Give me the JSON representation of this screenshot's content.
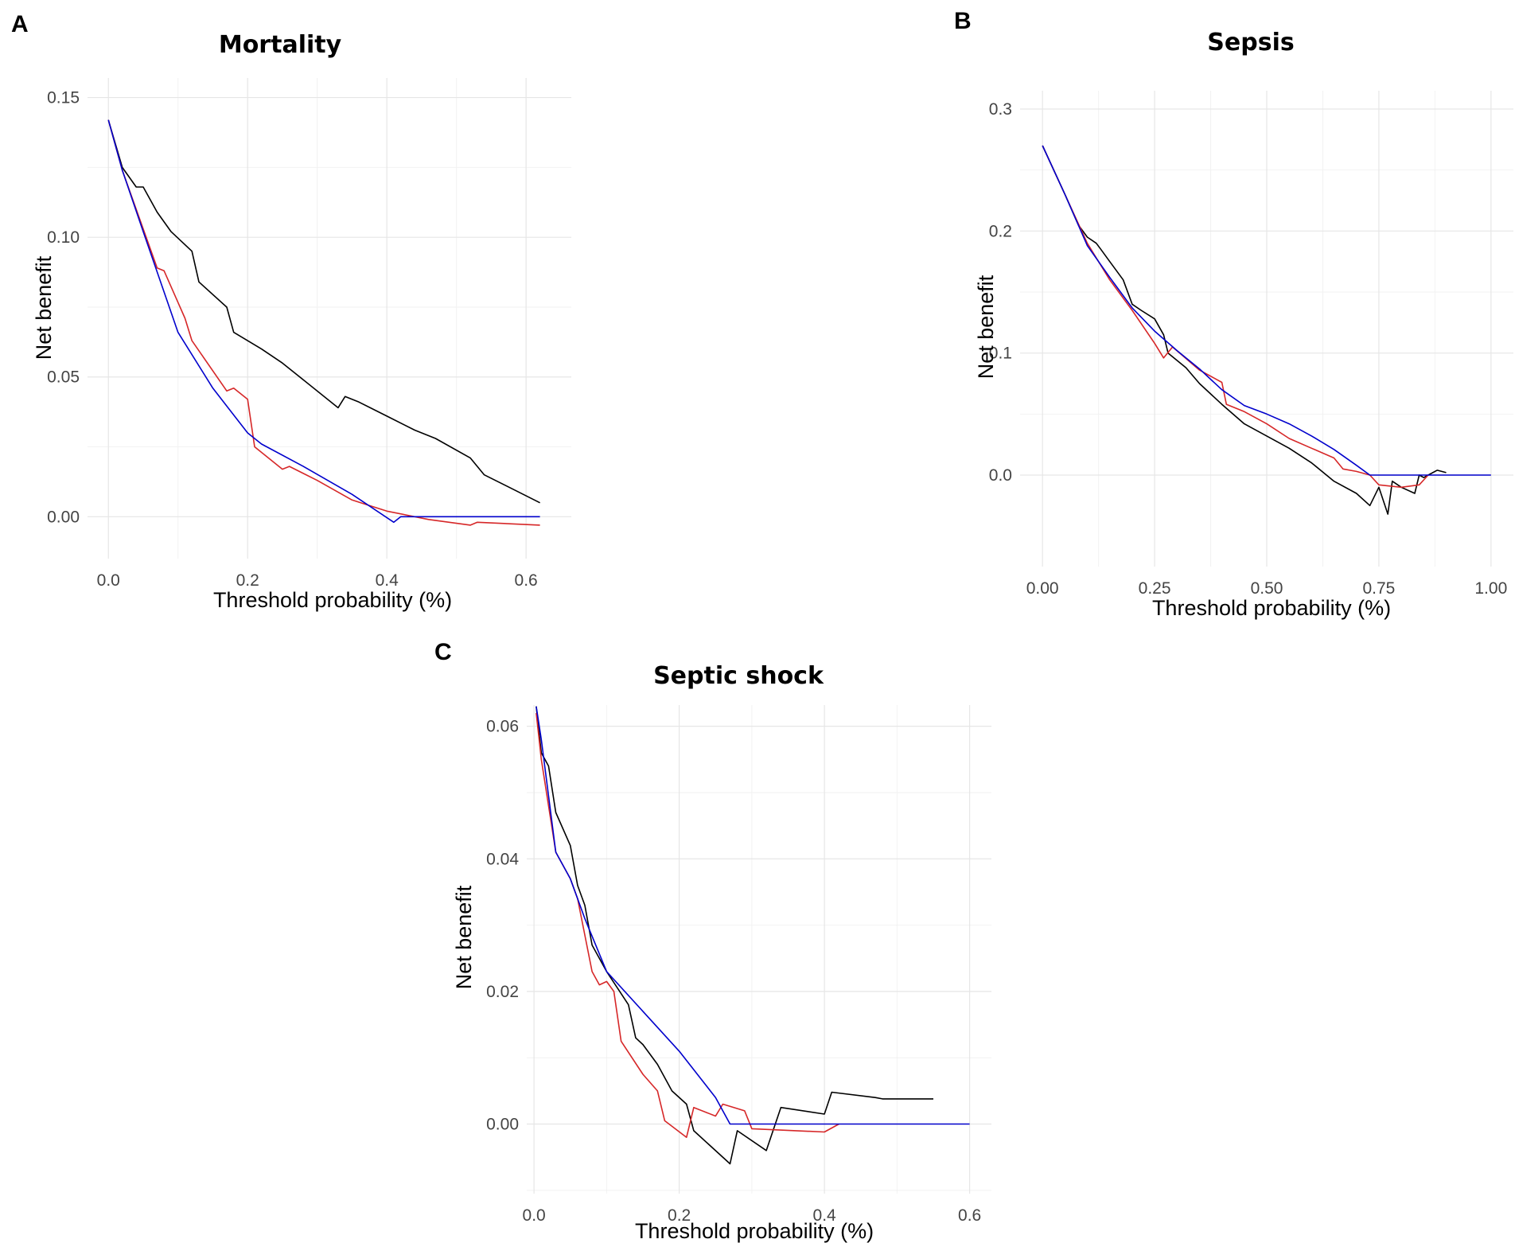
{
  "chart_data": [
    {
      "panel": "A",
      "type": "line",
      "title": "Mortality",
      "xlabel": "Threshold probability (%)",
      "ylabel": "Net benefit",
      "xlim": [
        -0.03,
        0.665
      ],
      "ylim": [
        -0.015,
        0.157
      ],
      "xticks": [
        0.0,
        0.2,
        0.4,
        0.6
      ],
      "xtick_labels": [
        "0.0",
        "0.2",
        "0.4",
        "0.6"
      ],
      "yticks": [
        0.0,
        0.05,
        0.1,
        0.15
      ],
      "ytick_labels": [
        "0.00",
        "0.05",
        "0.10",
        "0.15"
      ],
      "xminor": [
        0.1,
        0.3,
        0.5
      ],
      "yminor": [
        0.025,
        0.075,
        0.125
      ],
      "grid": true,
      "series": [
        {
          "name": "black",
          "color": "#000000",
          "x": [
            0.0,
            0.02,
            0.04,
            0.05,
            0.07,
            0.09,
            0.12,
            0.13,
            0.17,
            0.18,
            0.22,
            0.25,
            0.27,
            0.33,
            0.34,
            0.36,
            0.4,
            0.44,
            0.47,
            0.52,
            0.54,
            0.58,
            0.62
          ],
          "y": [
            0.142,
            0.125,
            0.118,
            0.118,
            0.109,
            0.102,
            0.095,
            0.084,
            0.075,
            0.066,
            0.06,
            0.055,
            0.051,
            0.039,
            0.043,
            0.041,
            0.036,
            0.031,
            0.028,
            0.021,
            0.015,
            0.01,
            0.005
          ]
        },
        {
          "name": "red",
          "color": "#d62728",
          "x": [
            0.0,
            0.02,
            0.04,
            0.07,
            0.08,
            0.11,
            0.12,
            0.17,
            0.18,
            0.2,
            0.21,
            0.25,
            0.26,
            0.3,
            0.35,
            0.4,
            0.46,
            0.52,
            0.53,
            0.62
          ],
          "y": [
            0.142,
            0.124,
            0.11,
            0.089,
            0.088,
            0.071,
            0.063,
            0.045,
            0.046,
            0.042,
            0.025,
            0.017,
            0.018,
            0.013,
            0.006,
            0.002,
            -0.001,
            -0.003,
            -0.002,
            -0.003
          ]
        },
        {
          "name": "blue",
          "color": "#0000cc",
          "x": [
            0.0,
            0.02,
            0.05,
            0.1,
            0.15,
            0.2,
            0.22,
            0.28,
            0.35,
            0.41,
            0.42,
            0.62
          ],
          "y": [
            0.142,
            0.124,
            0.102,
            0.066,
            0.046,
            0.03,
            0.026,
            0.018,
            0.008,
            -0.002,
            0.0,
            0.0
          ]
        }
      ]
    },
    {
      "panel": "B",
      "type": "line",
      "title": "Sepsis",
      "xlabel": "Threshold probability (%)",
      "ylabel": "Net benefit",
      "xlim": [
        -0.05,
        1.05
      ],
      "ylim": [
        -0.075,
        0.315
      ],
      "xticks": [
        0.0,
        0.25,
        0.5,
        0.75,
        1.0
      ],
      "xtick_labels": [
        "0.00",
        "0.25",
        "0.50",
        "0.75",
        "1.00"
      ],
      "yticks": [
        0.0,
        0.1,
        0.2,
        0.3
      ],
      "ytick_labels": [
        "0.0",
        "0.1",
        "0.2",
        "0.3"
      ],
      "xminor": [
        0.125,
        0.375,
        0.625,
        0.875
      ],
      "yminor": [
        0.05,
        0.15,
        0.25
      ],
      "grid": true,
      "series": [
        {
          "name": "black",
          "color": "#000000",
          "x": [
            0.0,
            0.05,
            0.08,
            0.09,
            0.1,
            0.12,
            0.13,
            0.15,
            0.18,
            0.2,
            0.22,
            0.25,
            0.27,
            0.28,
            0.32,
            0.35,
            0.4,
            0.45,
            0.5,
            0.55,
            0.6,
            0.65,
            0.7,
            0.73,
            0.75,
            0.77,
            0.78,
            0.8,
            0.83,
            0.84,
            0.85,
            0.86,
            0.88,
            0.9
          ],
          "y": [
            0.27,
            0.23,
            0.205,
            0.2,
            0.195,
            0.19,
            0.185,
            0.175,
            0.16,
            0.14,
            0.135,
            0.128,
            0.115,
            0.1,
            0.088,
            0.075,
            0.058,
            0.042,
            0.032,
            0.022,
            0.01,
            -0.005,
            -0.015,
            -0.025,
            -0.01,
            -0.032,
            -0.005,
            -0.01,
            -0.015,
            0.0,
            -0.002,
            0.0,
            0.004,
            0.002
          ]
        },
        {
          "name": "red",
          "color": "#d62728",
          "x": [
            0.0,
            0.05,
            0.1,
            0.15,
            0.2,
            0.25,
            0.27,
            0.29,
            0.35,
            0.4,
            0.41,
            0.45,
            0.5,
            0.55,
            0.6,
            0.65,
            0.67,
            0.7,
            0.73,
            0.75,
            0.8,
            0.84,
            0.86
          ],
          "y": [
            0.27,
            0.23,
            0.19,
            0.16,
            0.135,
            0.108,
            0.096,
            0.105,
            0.086,
            0.076,
            0.058,
            0.052,
            0.042,
            0.03,
            0.022,
            0.014,
            0.005,
            0.003,
            0.0,
            -0.008,
            -0.01,
            -0.008,
            0.0
          ]
        },
        {
          "name": "blue",
          "color": "#0000cc",
          "x": [
            0.0,
            0.05,
            0.1,
            0.15,
            0.2,
            0.25,
            0.3,
            0.35,
            0.4,
            0.45,
            0.5,
            0.55,
            0.6,
            0.65,
            0.7,
            0.73,
            0.8,
            1.0
          ],
          "y": [
            0.27,
            0.23,
            0.188,
            0.162,
            0.137,
            0.118,
            0.102,
            0.087,
            0.07,
            0.057,
            0.05,
            0.042,
            0.032,
            0.021,
            0.008,
            0.0,
            0.0,
            0.0
          ]
        }
      ]
    },
    {
      "panel": "C",
      "type": "line",
      "title": "Septic shock",
      "xlabel": "Threshold probability (%)",
      "ylabel": "Net benefit",
      "xlim": [
        -0.01,
        0.63
      ],
      "ylim": [
        -0.0105,
        0.0632
      ],
      "xticks": [
        0.0,
        0.2,
        0.4,
        0.6
      ],
      "xtick_labels": [
        "0.0",
        "0.2",
        "0.4",
        "0.6"
      ],
      "yticks": [
        0.0,
        0.02,
        0.04,
        0.06
      ],
      "ytick_labels": [
        "0.00",
        "0.02",
        "0.04",
        "0.06"
      ],
      "xminor": [
        0.1,
        0.3,
        0.5
      ],
      "yminor": [
        -0.01,
        0.01,
        0.03,
        0.05
      ],
      "grid": true,
      "series": [
        {
          "name": "black",
          "color": "#000000",
          "x": [
            0.003,
            0.01,
            0.02,
            0.03,
            0.05,
            0.06,
            0.07,
            0.08,
            0.1,
            0.13,
            0.14,
            0.15,
            0.17,
            0.19,
            0.21,
            0.22,
            0.27,
            0.28,
            0.32,
            0.34,
            0.4,
            0.41,
            0.47,
            0.48,
            0.55
          ],
          "y": [
            0.063,
            0.056,
            0.054,
            0.047,
            0.042,
            0.036,
            0.033,
            0.027,
            0.023,
            0.018,
            0.013,
            0.012,
            0.009,
            0.005,
            0.003,
            -0.001,
            -0.006,
            -0.001,
            -0.004,
            0.0025,
            0.0015,
            0.0048,
            0.004,
            0.0038,
            0.0038
          ]
        },
        {
          "name": "red",
          "color": "#d62728",
          "x": [
            0.003,
            0.01,
            0.02,
            0.03,
            0.05,
            0.06,
            0.08,
            0.09,
            0.1,
            0.11,
            0.12,
            0.15,
            0.17,
            0.18,
            0.21,
            0.22,
            0.25,
            0.26,
            0.29,
            0.3,
            0.4,
            0.42
          ],
          "y": [
            0.062,
            0.055,
            0.048,
            0.041,
            0.037,
            0.034,
            0.023,
            0.021,
            0.0215,
            0.02,
            0.0125,
            0.0075,
            0.005,
            0.0005,
            -0.002,
            0.0025,
            0.0012,
            0.003,
            0.002,
            -0.0007,
            -0.0012,
            0.0
          ]
        },
        {
          "name": "blue",
          "color": "#0000cc",
          "x": [
            0.003,
            0.01,
            0.03,
            0.05,
            0.07,
            0.1,
            0.15,
            0.2,
            0.25,
            0.27,
            0.3,
            0.6
          ],
          "y": [
            0.063,
            0.058,
            0.041,
            0.037,
            0.031,
            0.023,
            0.017,
            0.011,
            0.004,
            0.0,
            0.0,
            0.0
          ]
        }
      ]
    }
  ]
}
